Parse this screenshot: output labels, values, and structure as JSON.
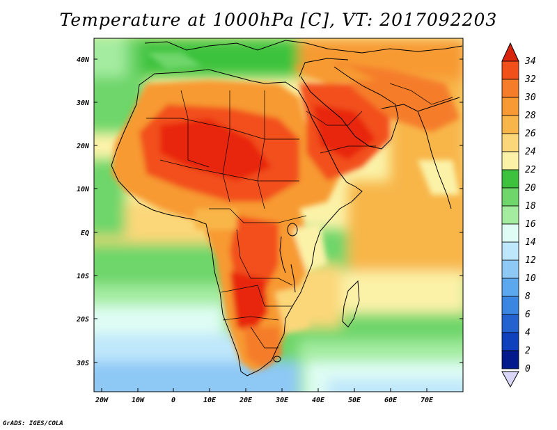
{
  "title": "Temperature at 1000hPa [C], VT: 2017092203",
  "footer": "GrADS: IGES/COLA",
  "map": {
    "lat_labels": [
      "40N",
      "30N",
      "20N",
      "10N",
      "EQ",
      "10S",
      "20S",
      "30S"
    ],
    "lon_labels": [
      "20W",
      "10W",
      "0",
      "10E",
      "20E",
      "30E",
      "40E",
      "50E",
      "60E",
      "70E"
    ]
  },
  "colorbar": {
    "labels": [
      "34",
      "32",
      "30",
      "28",
      "26",
      "24",
      "22",
      "20",
      "18",
      "16",
      "14",
      "12",
      "10",
      "8",
      "6",
      "4",
      "2",
      "0"
    ],
    "colors": [
      "#e8280e",
      "#f2501a",
      "#f57d2a",
      "#f79a33",
      "#f8b64a",
      "#fbd779",
      "#fbf2a8",
      "#3ec23e",
      "#6ed66a",
      "#a4eca0",
      "#dffdf4",
      "#bfe7fb",
      "#8ec8f5",
      "#5ca8ee",
      "#3a86e0",
      "#2462cf",
      "#1041bd",
      "#031a8c"
    ],
    "over_color": "#d8240c",
    "under_color": "#d9d6f8"
  }
}
